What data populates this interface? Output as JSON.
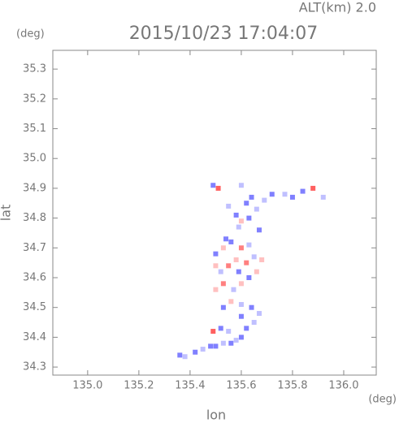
{
  "chart_data": {
    "type": "scatter",
    "title": "2015/10/23 17:04:07",
    "altitude_label": "ALT(km)  2.0",
    "y_unit": "(deg)",
    "x_unit": "(deg)",
    "x_label": "lon",
    "y_label": "lat",
    "xlim": [
      134.864,
      136.127
    ],
    "ylim": [
      34.273,
      35.363
    ],
    "xticks": [
      {
        "value": 135.0,
        "label": "135.0"
      },
      135.2,
      135.4,
      135.6,
      135.8,
      {
        "value": 136.0,
        "label": "136.0"
      }
    ],
    "yticks": [
      34.3,
      34.4,
      34.5,
      34.6,
      34.7,
      34.8,
      34.9,
      {
        "value": 35.0,
        "label": "35.0"
      },
      35.1,
      35.2,
      35.3
    ],
    "x": [
      135.36,
      135.38,
      135.42,
      135.45,
      135.48,
      135.5,
      135.53,
      135.56,
      135.58,
      135.6,
      135.49,
      135.52,
      135.55,
      135.62,
      135.65,
      135.6,
      135.53,
      135.56,
      135.6,
      135.64,
      135.67,
      135.5,
      135.53,
      135.57,
      135.6,
      135.63,
      135.66,
      135.52,
      135.55,
      135.58,
      135.62,
      135.65,
      135.68,
      135.5,
      135.53,
      135.56,
      135.6,
      135.63,
      135.54,
      135.5,
      135.59,
      135.51,
      135.49,
      135.55,
      135.58,
      135.6,
      135.63,
      135.66,
      135.62,
      135.6,
      135.64,
      135.69,
      135.72,
      135.77,
      135.8,
      135.84,
      135.88,
      135.92,
      135.67,
      135.59
    ],
    "y": [
      34.34,
      34.335,
      34.35,
      34.36,
      34.37,
      34.37,
      34.38,
      34.38,
      34.39,
      34.4,
      34.42,
      34.43,
      34.42,
      34.43,
      34.45,
      34.47,
      34.5,
      34.52,
      34.51,
      34.5,
      34.48,
      34.56,
      34.58,
      34.56,
      34.58,
      34.6,
      34.62,
      34.62,
      34.64,
      34.66,
      34.65,
      34.67,
      34.66,
      34.68,
      34.7,
      34.72,
      34.7,
      34.71,
      34.73,
      34.64,
      34.62,
      34.9,
      34.91,
      34.84,
      34.81,
      34.79,
      34.8,
      34.83,
      34.85,
      34.91,
      34.87,
      34.86,
      34.88,
      34.88,
      34.87,
      34.89,
      34.9,
      34.87,
      34.76,
      34.77
    ],
    "colors": [
      "#8080ff",
      "#c0c0ff",
      "#8080ff",
      "#c0c0ff",
      "#8080ff",
      "#8080ff",
      "#c0c0ff",
      "#8080ff",
      "#c0c0ff",
      "#8080ff",
      "#ff6060",
      "#8080ff",
      "#c0c0ff",
      "#8080ff",
      "#c0c0ff",
      "#8080ff",
      "#8080ff",
      "#ffc0c0",
      "#c0c0ff",
      "#8080ff",
      "#c0c0ff",
      "#ffc0c0",
      "#ff8080",
      "#c0c0ff",
      "#ffc0c0",
      "#8080ff",
      "#ffc0c0",
      "#c0c0ff",
      "#ff8080",
      "#ffc0c0",
      "#ff8080",
      "#c0c0ff",
      "#ffc0c0",
      "#8080ff",
      "#ffc0c0",
      "#8080ff",
      "#ff8080",
      "#c0c0ff",
      "#8080ff",
      "#ffc0c0",
      "#8080ff",
      "#ff6060",
      "#8080ff",
      "#c0c0ff",
      "#8080ff",
      "#ffc0c0",
      "#8080ff",
      "#c0c0ff",
      "#8080ff",
      "#c0c0ff",
      "#8080ff",
      "#c0c0ff",
      "#8080ff",
      "#c0c0ff",
      "#8080ff",
      "#8080ff",
      "#ff6060",
      "#c0c0ff",
      "#8080ff",
      "#c0c0ff"
    ]
  }
}
